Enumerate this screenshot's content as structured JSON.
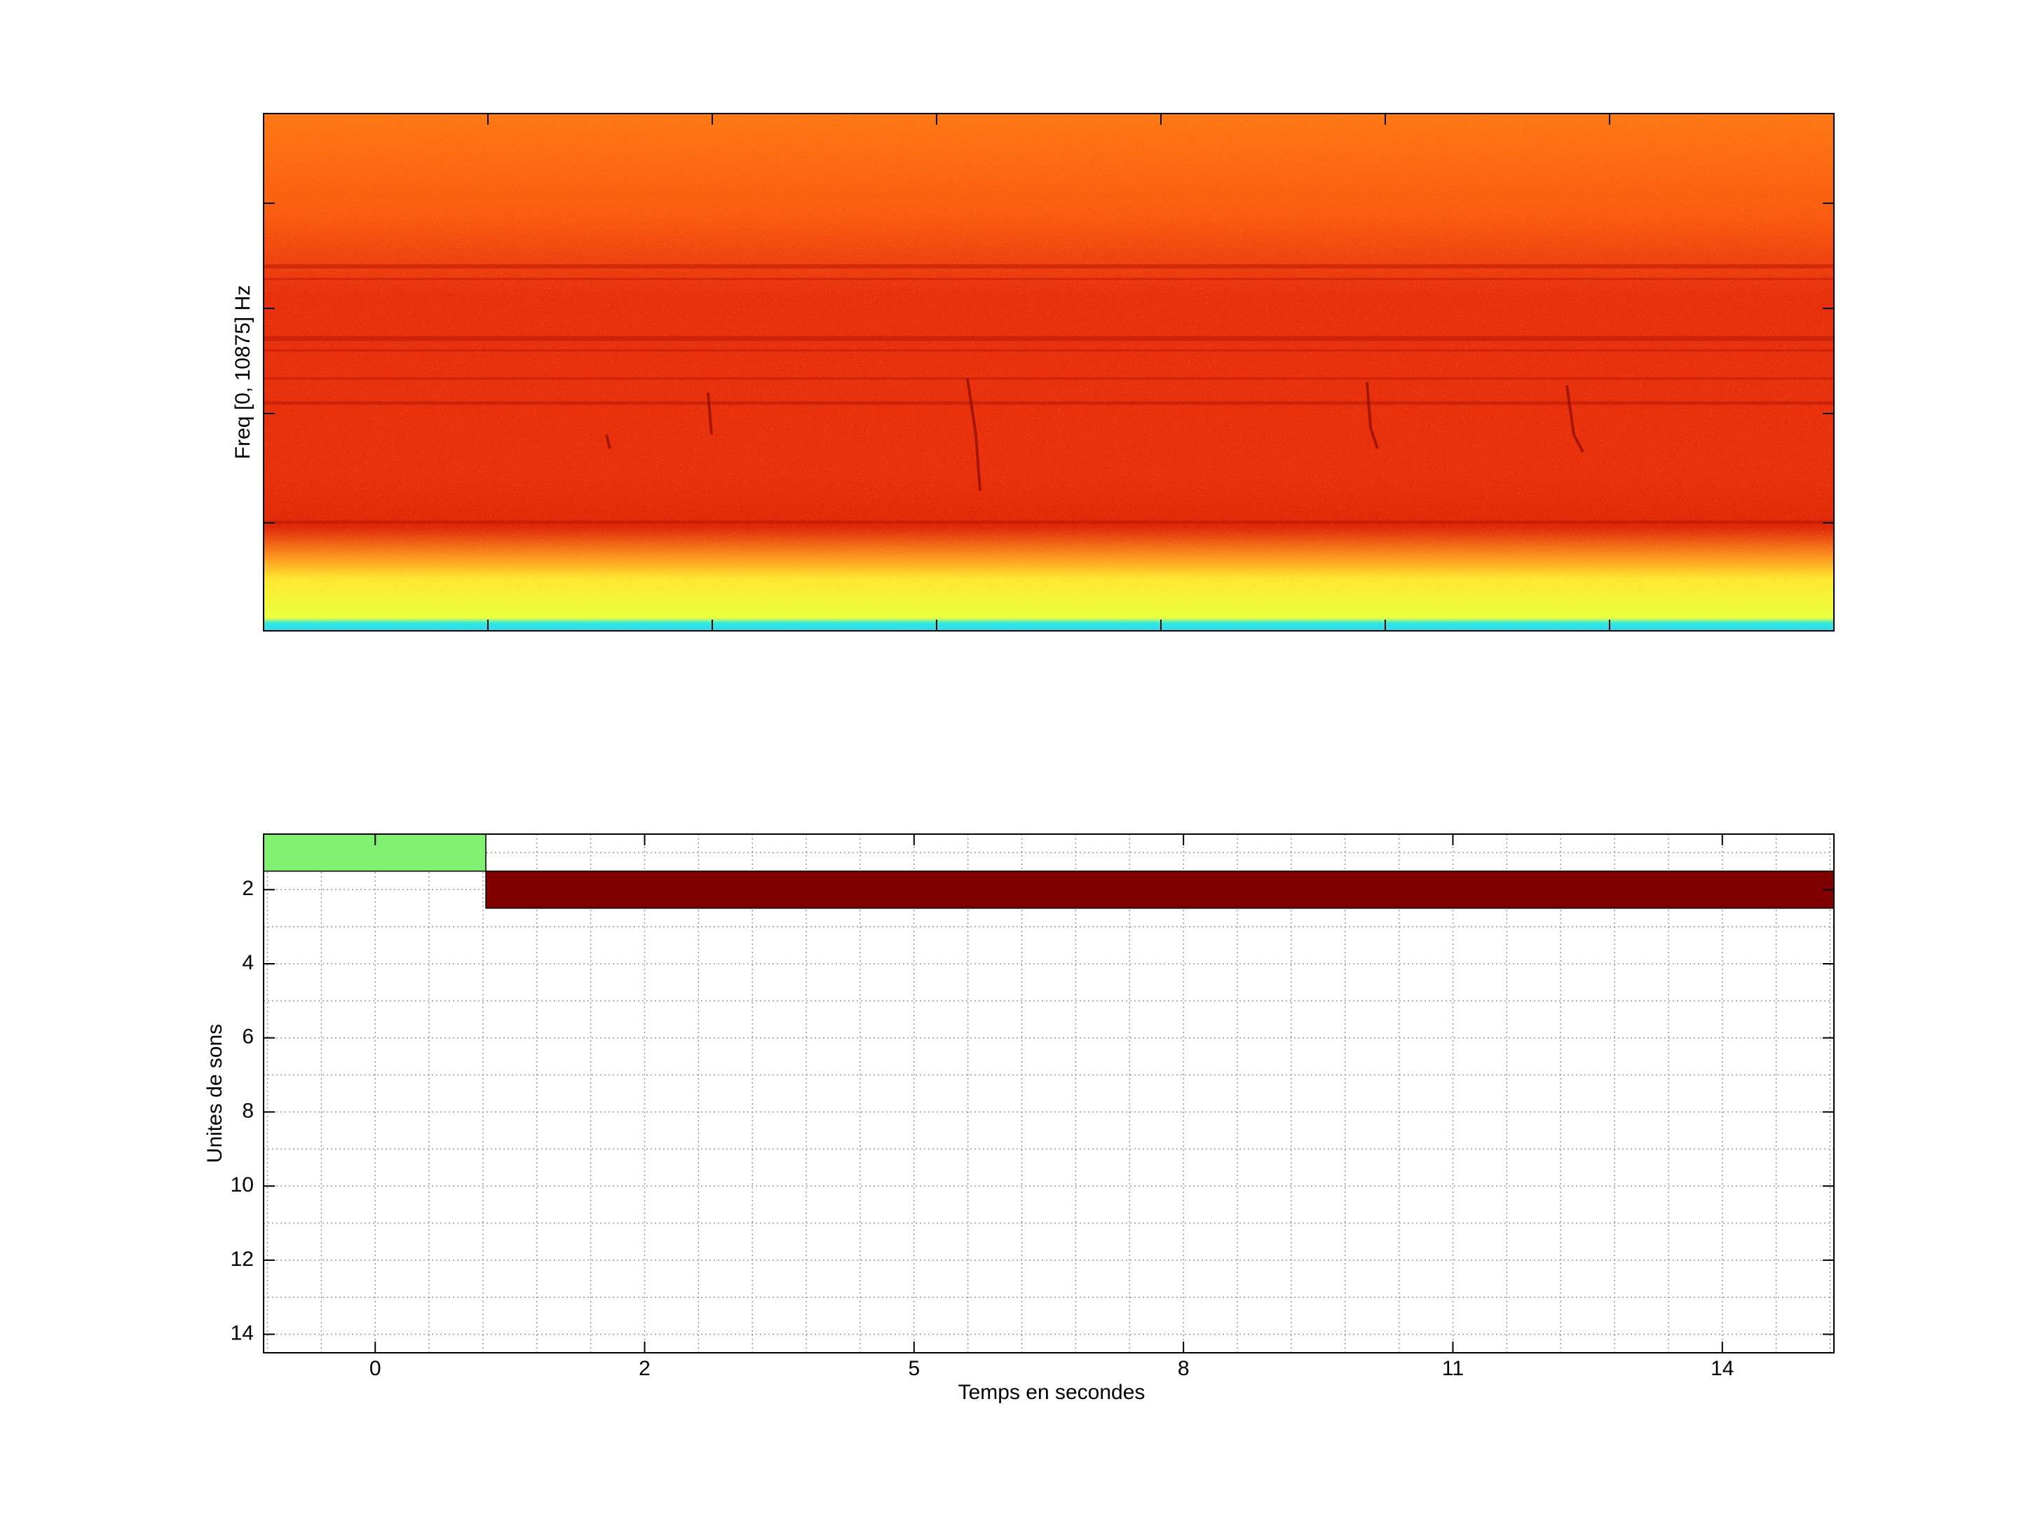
{
  "chart_data": [
    {
      "type": "spectrogram",
      "ylabel": "Freq [0, 10875] Hz"
    },
    {
      "type": "timeline",
      "xlabel": "Temps en secondes",
      "ylabel": "Unites de sons",
      "xlim": [
        -1.56,
        14.76
      ],
      "ylim": [
        0.5,
        14.5
      ],
      "y_reversed": true,
      "grid": true,
      "xticks": [
        {
          "value": -0.4,
          "label": "0"
        },
        {
          "value": 2.4,
          "label": "2"
        },
        {
          "value": 5.2,
          "label": "5"
        },
        {
          "value": 8.0,
          "label": "8"
        },
        {
          "value": 10.8,
          "label": "11"
        },
        {
          "value": 13.6,
          "label": "14"
        }
      ],
      "yticks": [
        2,
        4,
        6,
        8,
        10,
        12,
        14
      ],
      "segments": [
        {
          "unit": 1,
          "start": -1.56,
          "end": 0.75,
          "color": "#80f070"
        },
        {
          "unit": 2,
          "start": 0.75,
          "end": 14.76,
          "color": "#800000"
        }
      ]
    }
  ]
}
